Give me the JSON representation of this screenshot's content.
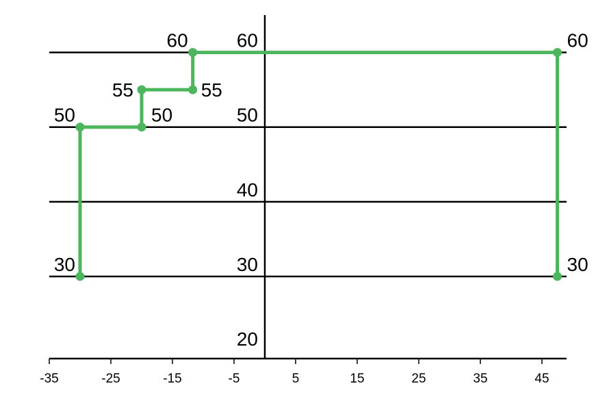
{
  "chart_data": {
    "type": "line",
    "title": "",
    "xlabel": "",
    "ylabel": "",
    "xlim": [
      -35,
      49
    ],
    "ylim": [
      19,
      65
    ],
    "x_ticks": [
      -35,
      -25,
      -15,
      -5,
      5,
      15,
      25,
      35,
      45
    ],
    "x_tick_labels": [
      "-35",
      "-25",
      "-15",
      "-5",
      "5",
      "15",
      "25",
      "35",
      "45"
    ],
    "y_gridlines": [
      30,
      40,
      50,
      60
    ],
    "y_tick_labels": [
      {
        "value": 20,
        "label": "20"
      },
      {
        "value": 30,
        "label": "30"
      },
      {
        "value": 40,
        "label": "40"
      },
      {
        "value": 50,
        "label": "50"
      },
      {
        "value": 60,
        "label": "60"
      }
    ],
    "y_axis_at_x": 0,
    "grid": true,
    "legend": "none",
    "series": [
      {
        "color": "#4db55d",
        "points": [
          {
            "x": -30,
            "y": 30
          },
          {
            "x": -30,
            "y": 50
          },
          {
            "x": -20,
            "y": 50
          },
          {
            "x": -20,
            "y": 55
          },
          {
            "x": -11.7,
            "y": 55
          },
          {
            "x": -11.7,
            "y": 60
          },
          {
            "x": 47.5,
            "y": 60
          },
          {
            "x": 47.5,
            "y": 30
          }
        ]
      }
    ],
    "point_labels": [
      {
        "x": -30,
        "y": 30,
        "text": "30",
        "anchor": "upper-left"
      },
      {
        "x": -30,
        "y": 50,
        "text": "50",
        "anchor": "upper-left"
      },
      {
        "x": -20,
        "y": 50,
        "text": "50",
        "anchor": "upper-right"
      },
      {
        "x": -20,
        "y": 55,
        "text": "55",
        "anchor": "left"
      },
      {
        "x": -11.7,
        "y": 55,
        "text": "55",
        "anchor": "right"
      },
      {
        "x": -11.7,
        "y": 60,
        "text": "60",
        "anchor": "upper-left"
      },
      {
        "x": 47.5,
        "y": 60,
        "text": "60",
        "anchor": "upper-right"
      },
      {
        "x": 47.5,
        "y": 30,
        "text": "30",
        "anchor": "upper-right"
      }
    ]
  }
}
